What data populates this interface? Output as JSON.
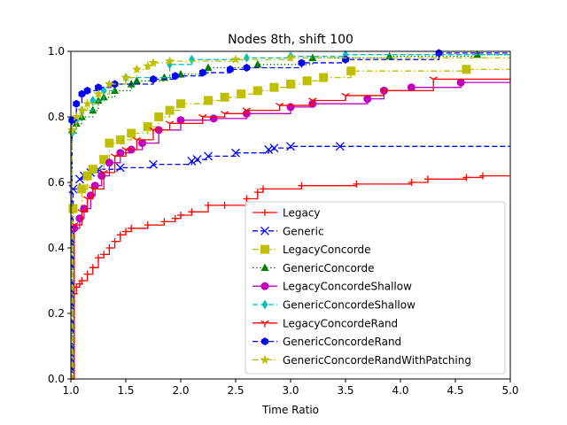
{
  "chart_data": {
    "type": "line",
    "title": "Nodes 8th, shift 100",
    "xlabel": "Time Ratio",
    "ylabel": "",
    "xlim": [
      1.0,
      5.0
    ],
    "ylim": [
      0.0,
      1.0
    ],
    "xticks": [
      "1.0",
      "1.5",
      "2.0",
      "2.5",
      "3.0",
      "3.5",
      "4.0",
      "4.5",
      "5.0"
    ],
    "yticks": [
      "0.0",
      "0.2",
      "0.4",
      "0.6",
      "0.8",
      "1.0"
    ],
    "grid": false,
    "legend_position": "lower-right",
    "series": [
      {
        "name": "Legacy",
        "color": "#ff0000",
        "dash": "solid",
        "marker": "plus",
        "points": [
          [
            1.0,
            0.0
          ],
          [
            1.03,
            0.26
          ],
          [
            1.05,
            0.28
          ],
          [
            1.08,
            0.29
          ],
          [
            1.1,
            0.3
          ],
          [
            1.15,
            0.32
          ],
          [
            1.2,
            0.34
          ],
          [
            1.25,
            0.37
          ],
          [
            1.3,
            0.38
          ],
          [
            1.35,
            0.4
          ],
          [
            1.4,
            0.42
          ],
          [
            1.45,
            0.44
          ],
          [
            1.5,
            0.45
          ],
          [
            1.55,
            0.46
          ],
          [
            1.7,
            0.47
          ],
          [
            1.85,
            0.48
          ],
          [
            1.95,
            0.49
          ],
          [
            2.0,
            0.5
          ],
          [
            2.1,
            0.51
          ],
          [
            2.25,
            0.53
          ],
          [
            2.4,
            0.53
          ],
          [
            2.6,
            0.55
          ],
          [
            2.7,
            0.57
          ],
          [
            2.75,
            0.58
          ],
          [
            3.1,
            0.59
          ],
          [
            3.6,
            0.595
          ],
          [
            4.1,
            0.6
          ],
          [
            4.25,
            0.61
          ],
          [
            4.6,
            0.615
          ],
          [
            4.75,
            0.62
          ],
          [
            5.0,
            0.62
          ]
        ]
      },
      {
        "name": "Generic",
        "color": "#0000ff",
        "dash": "dashed",
        "marker": "x",
        "points": [
          [
            1.0,
            0.0
          ],
          [
            1.02,
            0.58
          ],
          [
            1.08,
            0.61
          ],
          [
            1.12,
            0.62
          ],
          [
            1.18,
            0.63
          ],
          [
            1.25,
            0.64
          ],
          [
            1.45,
            0.645
          ],
          [
            1.75,
            0.655
          ],
          [
            2.1,
            0.665
          ],
          [
            2.15,
            0.67
          ],
          [
            2.25,
            0.68
          ],
          [
            2.5,
            0.69
          ],
          [
            2.8,
            0.7
          ],
          [
            2.85,
            0.705
          ],
          [
            3.0,
            0.71
          ],
          [
            3.45,
            0.71
          ],
          [
            5.0,
            0.71
          ]
        ]
      },
      {
        "name": "LegacyConcorde",
        "color": "#bfbf00",
        "dash": "dashdot",
        "marker": "square",
        "points": [
          [
            1.0,
            0.0
          ],
          [
            1.02,
            0.52
          ],
          [
            1.1,
            0.58
          ],
          [
            1.15,
            0.62
          ],
          [
            1.2,
            0.64
          ],
          [
            1.3,
            0.67
          ],
          [
            1.35,
            0.72
          ],
          [
            1.45,
            0.73
          ],
          [
            1.55,
            0.75
          ],
          [
            1.7,
            0.77
          ],
          [
            1.8,
            0.8
          ],
          [
            1.9,
            0.82
          ],
          [
            2.0,
            0.84
          ],
          [
            2.25,
            0.85
          ],
          [
            2.4,
            0.86
          ],
          [
            2.55,
            0.87
          ],
          [
            2.7,
            0.88
          ],
          [
            2.85,
            0.89
          ],
          [
            3.0,
            0.9
          ],
          [
            3.15,
            0.91
          ],
          [
            3.3,
            0.92
          ],
          [
            3.55,
            0.94
          ],
          [
            4.6,
            0.945
          ],
          [
            5.0,
            0.945
          ]
        ]
      },
      {
        "name": "GenericConcorde",
        "color": "#008000",
        "dash": "dotted",
        "marker": "triangle",
        "points": [
          [
            1.0,
            0.0
          ],
          [
            1.01,
            0.76
          ],
          [
            1.05,
            0.78
          ],
          [
            1.1,
            0.8
          ],
          [
            1.2,
            0.82
          ],
          [
            1.25,
            0.85
          ],
          [
            1.3,
            0.86
          ],
          [
            1.4,
            0.88
          ],
          [
            1.55,
            0.9
          ],
          [
            1.6,
            0.91
          ],
          [
            1.85,
            0.92
          ],
          [
            2.0,
            0.93
          ],
          [
            2.25,
            0.95
          ],
          [
            2.7,
            0.96
          ],
          [
            3.2,
            0.98
          ],
          [
            3.9,
            0.985
          ],
          [
            4.7,
            0.99
          ],
          [
            5.0,
            0.99
          ]
        ]
      },
      {
        "name": "LegacyConcordeShallow",
        "color": "#bf00bf",
        "dash": "solid",
        "marker": "circle",
        "points": [
          [
            1.0,
            0.0
          ],
          [
            1.03,
            0.46
          ],
          [
            1.08,
            0.49
          ],
          [
            1.12,
            0.52
          ],
          [
            1.18,
            0.56
          ],
          [
            1.22,
            0.59
          ],
          [
            1.28,
            0.62
          ],
          [
            1.35,
            0.66
          ],
          [
            1.45,
            0.69
          ],
          [
            1.55,
            0.7
          ],
          [
            1.65,
            0.72
          ],
          [
            1.8,
            0.76
          ],
          [
            2.0,
            0.79
          ],
          [
            2.3,
            0.795
          ],
          [
            2.6,
            0.81
          ],
          [
            3.0,
            0.83
          ],
          [
            3.2,
            0.84
          ],
          [
            3.7,
            0.855
          ],
          [
            3.85,
            0.88
          ],
          [
            4.1,
            0.89
          ],
          [
            4.55,
            0.905
          ],
          [
            5.0,
            0.905
          ]
        ]
      },
      {
        "name": "GenericConcordeShallow",
        "color": "#00bfbf",
        "dash": "dashed",
        "marker": "diamond",
        "points": [
          [
            1.0,
            0.0
          ],
          [
            1.01,
            0.75
          ],
          [
            1.05,
            0.79
          ],
          [
            1.1,
            0.82
          ],
          [
            1.2,
            0.85
          ],
          [
            1.3,
            0.88
          ],
          [
            1.4,
            0.9
          ],
          [
            1.5,
            0.92
          ],
          [
            1.9,
            0.96
          ],
          [
            2.1,
            0.975
          ],
          [
            2.6,
            0.98
          ],
          [
            3.0,
            0.985
          ],
          [
            3.5,
            0.99
          ],
          [
            5.0,
            0.99
          ]
        ]
      },
      {
        "name": "LegacyConcordeRand",
        "color": "#ff0000",
        "dash": "solid",
        "marker": "tri_down",
        "points": [
          [
            1.0,
            0.0
          ],
          [
            1.03,
            0.47
          ],
          [
            1.1,
            0.51
          ],
          [
            1.15,
            0.55
          ],
          [
            1.2,
            0.58
          ],
          [
            1.3,
            0.63
          ],
          [
            1.4,
            0.68
          ],
          [
            1.5,
            0.7
          ],
          [
            1.6,
            0.73
          ],
          [
            1.75,
            0.76
          ],
          [
            1.9,
            0.78
          ],
          [
            2.2,
            0.8
          ],
          [
            2.4,
            0.81
          ],
          [
            2.6,
            0.82
          ],
          [
            2.9,
            0.835
          ],
          [
            3.2,
            0.85
          ],
          [
            3.5,
            0.865
          ],
          [
            3.85,
            0.88
          ],
          [
            4.3,
            0.915
          ],
          [
            5.0,
            0.92
          ]
        ]
      },
      {
        "name": "GenericConcordeRand",
        "color": "#0000ff",
        "dash": "dashed",
        "marker": "hexagon",
        "points": [
          [
            1.0,
            0.0
          ],
          [
            1.01,
            0.79
          ],
          [
            1.05,
            0.84
          ],
          [
            1.1,
            0.87
          ],
          [
            1.15,
            0.88
          ],
          [
            1.25,
            0.89
          ],
          [
            1.4,
            0.9
          ],
          [
            1.75,
            0.915
          ],
          [
            1.95,
            0.925
          ],
          [
            2.2,
            0.935
          ],
          [
            2.45,
            0.945
          ],
          [
            2.6,
            0.95
          ],
          [
            3.1,
            0.965
          ],
          [
            3.5,
            0.975
          ],
          [
            4.35,
            0.995
          ],
          [
            5.0,
            0.995
          ]
        ]
      },
      {
        "name": "GenericConcordeRandWithPatching",
        "color": "#bfbf00",
        "dash": "dashdot",
        "marker": "star",
        "points": [
          [
            1.0,
            0.0
          ],
          [
            1.01,
            0.76
          ],
          [
            1.05,
            0.8
          ],
          [
            1.1,
            0.82
          ],
          [
            1.15,
            0.84
          ],
          [
            1.25,
            0.87
          ],
          [
            1.35,
            0.9
          ],
          [
            1.5,
            0.92
          ],
          [
            1.6,
            0.945
          ],
          [
            1.7,
            0.955
          ],
          [
            1.75,
            0.965
          ],
          [
            1.9,
            0.97
          ],
          [
            2.5,
            0.975
          ],
          [
            3.0,
            0.98
          ],
          [
            5.0,
            0.98
          ]
        ]
      }
    ]
  }
}
